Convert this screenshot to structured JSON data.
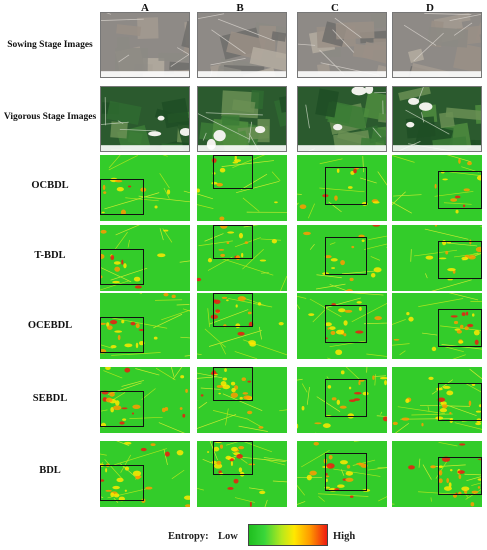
{
  "columns": [
    "A",
    "B",
    "C",
    "D"
  ],
  "rows": [
    {
      "label": "Sowing Stage Images",
      "kind": "photo-sowing"
    },
    {
      "label": "Vigorous Stage Images",
      "kind": "photo-vigorous"
    },
    {
      "label": "OCBDL",
      "kind": "entropy"
    },
    {
      "label": "T-BDL",
      "kind": "entropy"
    },
    {
      "label": "OCEBDL",
      "kind": "entropy"
    },
    {
      "label": "SEBDL",
      "kind": "entropy"
    },
    {
      "label": "BDL",
      "kind": "entropy"
    }
  ],
  "legend": {
    "title": "Entropy:",
    "low": "Low",
    "high": "High"
  },
  "colors": {
    "low": "#1fbf1f",
    "mid": "#ffe800",
    "high": "#ee1a10"
  }
}
